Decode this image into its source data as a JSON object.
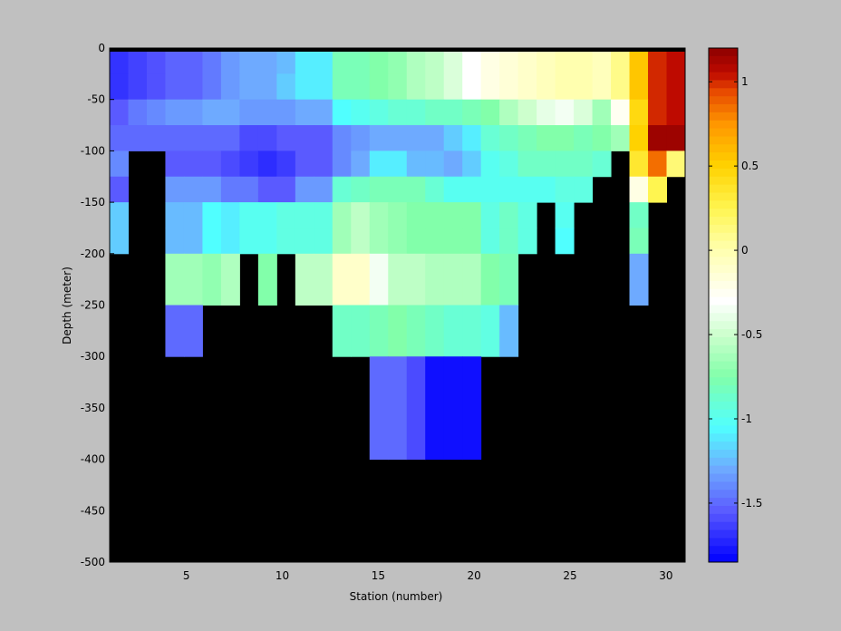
{
  "chart_data": {
    "type": "heatmap",
    "xlabel": "Station (number)",
    "ylabel": "Depth (meter)",
    "xlim": [
      1,
      31
    ],
    "ylim": [
      -500,
      0
    ],
    "x_ticks": [
      5,
      10,
      15,
      20,
      25,
      30
    ],
    "y_ticks": [
      0,
      -50,
      -100,
      -150,
      -200,
      -250,
      -300,
      -350,
      -400,
      -450,
      -500
    ],
    "colorbar": {
      "clim": [
        -1.85,
        1.2
      ],
      "ticks": [
        1,
        0.5,
        0,
        -0.5,
        -1,
        -1.5
      ],
      "colormap": "jet-with-white-at-minus-0.3"
    },
    "missing_color": "#000000",
    "depth_bins": [
      [
        0,
        -25
      ],
      [
        -25,
        -50
      ],
      [
        -50,
        -75
      ],
      [
        -75,
        -100
      ],
      [
        -100,
        -125
      ],
      [
        -125,
        -150
      ],
      [
        -150,
        -175
      ],
      [
        -175,
        -200
      ],
      [
        -200,
        -250
      ],
      [
        -250,
        -300
      ],
      [
        -300,
        -400
      ],
      [
        -400,
        -500
      ]
    ],
    "stations": [
      1,
      2,
      3,
      4,
      5,
      6,
      7,
      8,
      9,
      10,
      11,
      12,
      13,
      14,
      15,
      16,
      17,
      18,
      19,
      20,
      21,
      22,
      23,
      24,
      25,
      26,
      27,
      28,
      29,
      30,
      31
    ],
    "values": [
      [
        -1.68,
        -1.63,
        -1.58,
        -1.52,
        -1.52,
        -1.45,
        -1.35,
        -1.3,
        -1.3,
        -1.25,
        -1.1,
        -1.1,
        -0.8,
        -0.8,
        -0.75,
        -0.7,
        -0.6,
        -0.55,
        -0.45,
        -0.3,
        -0.2,
        -0.15,
        -0.1,
        -0.05,
        0,
        0,
        -0.05,
        0.1,
        0.55,
        1.0,
        1.05
      ],
      [
        -1.68,
        -1.63,
        -1.58,
        -1.52,
        -1.52,
        -1.45,
        -1.35,
        -1.3,
        -1.3,
        -1.2,
        -1.1,
        -1.1,
        -0.8,
        -0.8,
        -0.75,
        -0.7,
        -0.6,
        -0.55,
        -0.45,
        -0.3,
        -0.2,
        -0.15,
        -0.1,
        -0.05,
        0,
        0,
        -0.05,
        0.1,
        0.55,
        1.0,
        1.05
      ],
      [
        -1.55,
        -1.45,
        -1.4,
        -1.35,
        -1.35,
        -1.3,
        -1.3,
        -1.35,
        -1.35,
        -1.35,
        -1.3,
        -1.3,
        -1.05,
        -1.0,
        -0.95,
        -0.9,
        -0.9,
        -0.85,
        -0.85,
        -0.8,
        -0.75,
        -0.6,
        -0.5,
        -0.4,
        -0.35,
        -0.45,
        -0.65,
        -0.25,
        0.45,
        1.0,
        1.05
      ],
      [
        -1.5,
        -1.5,
        -1.5,
        -1.5,
        -1.5,
        -1.5,
        -1.5,
        -1.6,
        -1.6,
        -1.55,
        -1.55,
        -1.55,
        -1.4,
        -1.35,
        -1.3,
        -1.3,
        -1.3,
        -1.3,
        -1.2,
        -1.1,
        -0.9,
        -0.85,
        -0.8,
        -0.75,
        -0.75,
        -0.8,
        -0.75,
        -0.65,
        0.5,
        1.15,
        1.15
      ],
      [
        -1.4,
        null,
        null,
        -1.55,
        -1.55,
        -1.55,
        -1.6,
        -1.65,
        -1.7,
        -1.65,
        -1.55,
        -1.55,
        -1.4,
        -1.3,
        -1.1,
        -1.1,
        -1.25,
        -1.25,
        -1.3,
        -1.2,
        -1.0,
        -0.95,
        -0.85,
        -0.85,
        -0.85,
        -0.85,
        -0.9,
        null,
        0.35,
        0.85,
        0.15
      ],
      [
        -1.55,
        null,
        null,
        -1.35,
        -1.35,
        -1.35,
        -1.45,
        -1.45,
        -1.55,
        -1.55,
        -1.35,
        -1.35,
        -0.9,
        -0.85,
        -0.8,
        -0.8,
        -0.8,
        -0.9,
        -1.0,
        -1.0,
        -1.0,
        -1.0,
        -1.0,
        -1.0,
        -0.95,
        -0.95,
        null,
        null,
        -0.2,
        0.25,
        null
      ],
      [
        -1.2,
        null,
        null,
        -1.25,
        -1.25,
        -1.05,
        -1.1,
        -1.0,
        -1.0,
        -0.95,
        -0.95,
        -0.95,
        -0.65,
        -0.55,
        -0.65,
        -0.7,
        -0.75,
        -0.75,
        -0.75,
        -0.75,
        -0.95,
        -0.85,
        -0.95,
        null,
        -1.0,
        null,
        null,
        null,
        -0.85,
        null,
        null
      ],
      [
        -1.2,
        null,
        null,
        -1.25,
        -1.25,
        -1.05,
        -1.1,
        -1.0,
        -1.0,
        -0.95,
        -0.95,
        -0.95,
        -0.65,
        -0.55,
        -0.65,
        -0.7,
        -0.75,
        -0.75,
        -0.75,
        -0.75,
        -0.95,
        -0.85,
        -0.95,
        null,
        -1.05,
        null,
        null,
        null,
        -0.8,
        null,
        null
      ],
      [
        null,
        null,
        null,
        -0.65,
        -0.65,
        -0.7,
        -0.6,
        null,
        -0.75,
        null,
        -0.55,
        -0.55,
        -0.1,
        -0.1,
        -0.35,
        -0.55,
        -0.55,
        -0.6,
        -0.6,
        -0.6,
        -0.75,
        -0.8,
        null,
        null,
        null,
        null,
        null,
        null,
        -1.3,
        null,
        null
      ],
      [
        null,
        null,
        null,
        -1.5,
        -1.5,
        null,
        null,
        null,
        null,
        null,
        null,
        null,
        -0.85,
        -0.85,
        -0.8,
        -0.75,
        -0.8,
        -0.85,
        -0.9,
        -0.9,
        -0.95,
        -1.25,
        null,
        null,
        null,
        null,
        null,
        null,
        null,
        null,
        null
      ],
      [
        null,
        null,
        null,
        null,
        null,
        null,
        null,
        null,
        null,
        null,
        null,
        null,
        null,
        null,
        -1.5,
        -1.5,
        -1.6,
        -1.8,
        -1.8,
        -1.8,
        null,
        null,
        null,
        null,
        null,
        null,
        null,
        null,
        null,
        null,
        null
      ],
      [
        null,
        null,
        null,
        null,
        null,
        null,
        null,
        null,
        null,
        null,
        null,
        null,
        null,
        null,
        null,
        null,
        null,
        null,
        null,
        null,
        null,
        null,
        null,
        null,
        null,
        null,
        null,
        null,
        null,
        null,
        null
      ]
    ]
  }
}
